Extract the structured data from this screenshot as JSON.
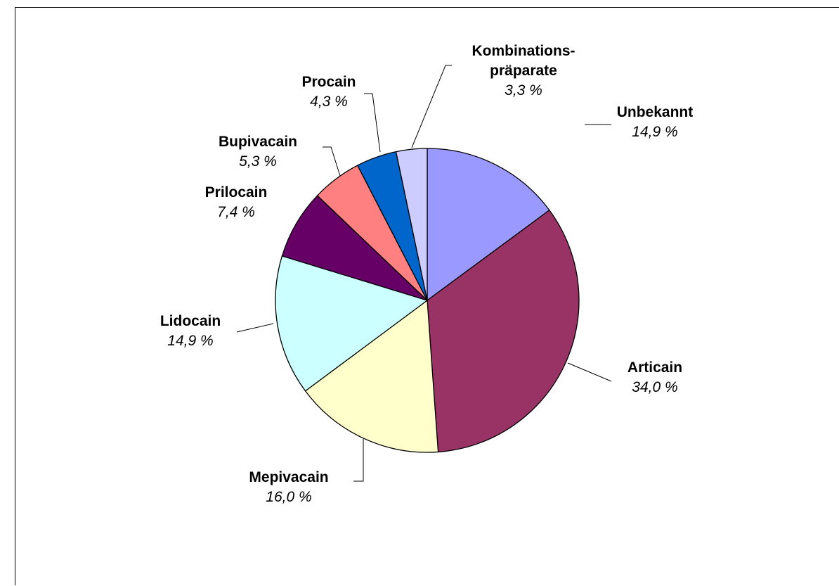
{
  "chart_data": {
    "type": "pie",
    "slices": [
      {
        "label": [
          "Unbekannt"
        ],
        "value_label": "14,9 %",
        "value": 14.9,
        "color": "#9999ff"
      },
      {
        "label": [
          "Articain"
        ],
        "value_label": "34,0 %",
        "value": 34.0,
        "color": "#993366"
      },
      {
        "label": [
          "Mepivacain"
        ],
        "value_label": "16,0 %",
        "value": 16.0,
        "color": "#ffffcc"
      },
      {
        "label": [
          "Lidocain"
        ],
        "value_label": "14,9 %",
        "value": 14.9,
        "color": "#ccffff"
      },
      {
        "label": [
          "Prilocain"
        ],
        "value_label": "7,4 %",
        "value": 7.4,
        "color": "#660066"
      },
      {
        "label": [
          "Bupivacain"
        ],
        "value_label": "5,3 %",
        "value": 5.3,
        "color": "#ff8080"
      },
      {
        "label": [
          "Procain"
        ],
        "value_label": "4,3 %",
        "value": 4.3,
        "color": "#0066cc"
      },
      {
        "label": [
          "Kombinations-",
          "präparate"
        ],
        "value_label": "3,3 %",
        "value": 3.3,
        "color": "#ccccff"
      }
    ],
    "start_angle": "12 o'clock",
    "direction": "clockwise",
    "legend": "none",
    "labels": "outside with leader lines"
  }
}
